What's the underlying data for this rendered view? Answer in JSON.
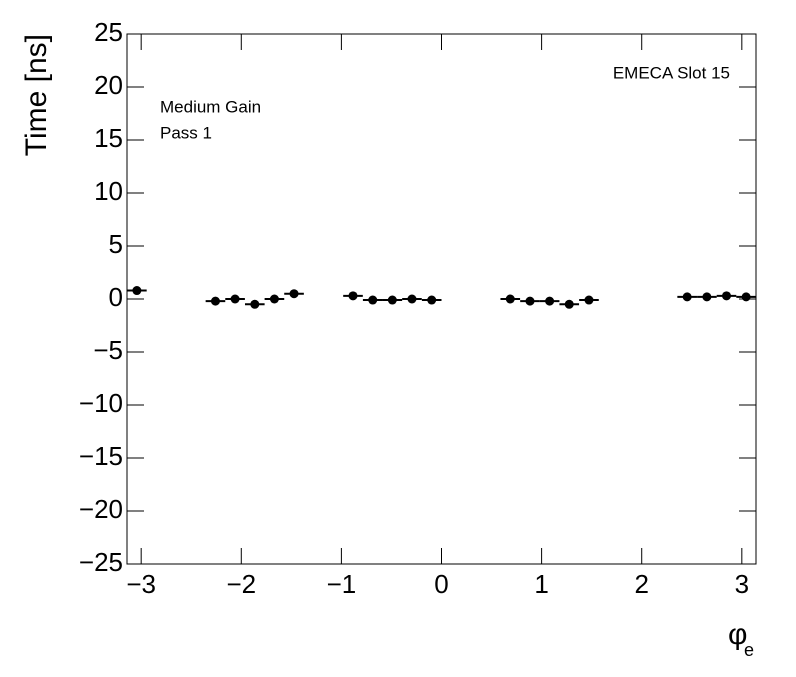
{
  "chart_data": {
    "type": "scatter",
    "ylabel": "Time [ns]",
    "xlabel": "φ",
    "xlabel_sub": "e",
    "annotations": [
      "EMECA Slot 15",
      "Medium Gain",
      "Pass 1"
    ],
    "xlim": [
      -3.1416,
      3.1416
    ],
    "ylim": [
      -25,
      25
    ],
    "xticks": [
      {
        "value": -3,
        "label": "−3"
      },
      {
        "value": -2,
        "label": "−2"
      },
      {
        "value": -1,
        "label": "−1"
      },
      0,
      1,
      2,
      3
    ],
    "yticks": [
      {
        "value": -25,
        "label": "−25"
      },
      {
        "value": -20,
        "label": "−20"
      },
      {
        "value": -15,
        "label": "−15"
      },
      {
        "value": -10,
        "label": "−10"
      },
      {
        "value": -5,
        "label": "−5"
      },
      0,
      5,
      10,
      15,
      20,
      25
    ],
    "series": [
      {
        "color": "#000000",
        "x": [
          -3.043,
          -2.258,
          -2.062,
          -1.865,
          -1.669,
          -1.473,
          -0.884,
          -0.687,
          -0.491,
          -0.295,
          -0.098,
          0.687,
          0.884,
          1.08,
          1.276,
          1.473,
          2.454,
          2.651,
          2.847,
          3.043
        ],
        "values": [
          0.8,
          -0.2,
          0,
          -0.5,
          0,
          0.5,
          0.3,
          -0.1,
          -0.1,
          0,
          -0.1,
          0,
          -0.2,
          -0.2,
          -0.5,
          -0.1,
          0.2,
          0.2,
          0.3,
          0.2
        ],
        "x_error": 0.098
      }
    ]
  }
}
